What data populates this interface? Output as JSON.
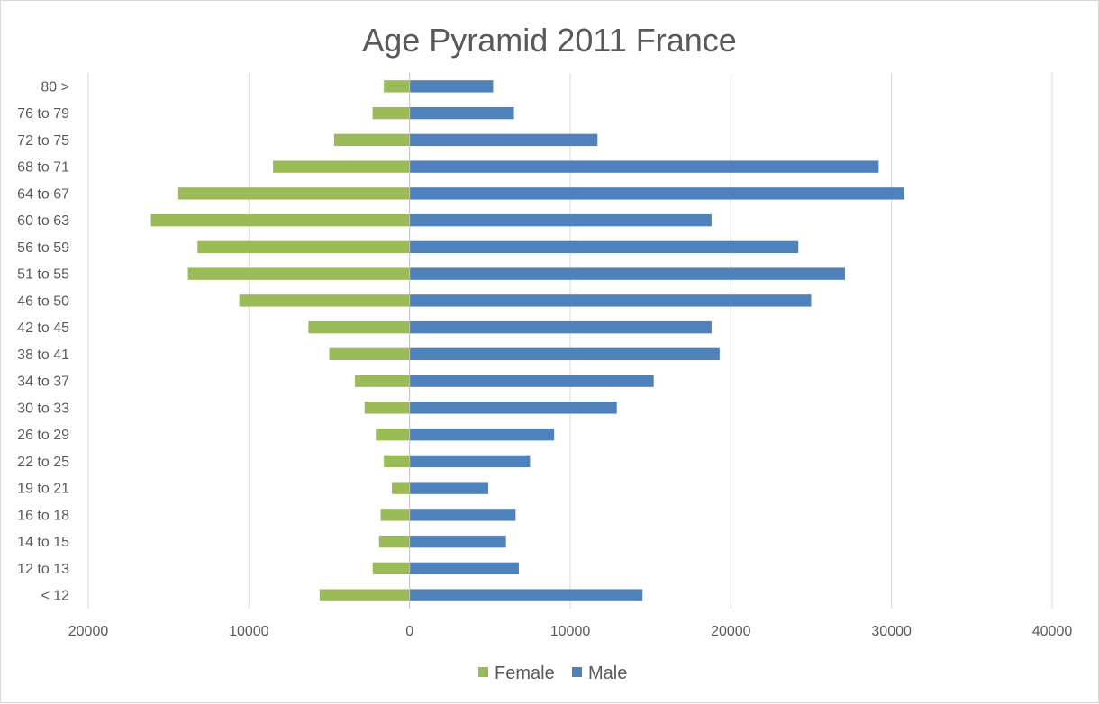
{
  "chart_data": {
    "type": "bar",
    "orientation": "horizontal",
    "title": "Age Pyramid 2011 France",
    "categories": [
      "80 >",
      "76 to 79",
      "72 to 75",
      "68 to 71",
      "64 to 67",
      "60 to 63",
      "56 to 59",
      "51 to 55",
      "46 to 50",
      "42 to 45",
      "38 to 41",
      "34 to 37",
      "30 to 33",
      "26 to 29",
      "22 to 25",
      "19 to 21",
      "16 to 18",
      "14 to 15",
      "12 to 13",
      "< 12"
    ],
    "series": [
      {
        "name": "Female",
        "color": "#9bbb59",
        "values": [
          -1600,
          -2300,
          -4700,
          -8500,
          -14400,
          -16100,
          -13200,
          -13800,
          -10600,
          -6300,
          -5000,
          -3400,
          -2800,
          -2100,
          -1600,
          -1100,
          -1800,
          -1900,
          -2300,
          -5600
        ]
      },
      {
        "name": "Male",
        "color": "#4f81bd",
        "values": [
          5200,
          6500,
          11700,
          29200,
          30800,
          18800,
          24200,
          27100,
          25000,
          18800,
          19300,
          15200,
          12900,
          9000,
          7500,
          4900,
          6600,
          6000,
          6800,
          14500
        ]
      }
    ],
    "xlim": [
      -20000,
      40000
    ],
    "xticks": [
      -20000,
      -10000,
      0,
      10000,
      20000,
      30000,
      40000
    ],
    "xtick_labels": [
      "20000",
      "10000",
      "0",
      "10000",
      "20000",
      "30000",
      "40000"
    ],
    "xlabel": "",
    "ylabel": "",
    "grid": "vertical",
    "legend_position": "bottom"
  }
}
